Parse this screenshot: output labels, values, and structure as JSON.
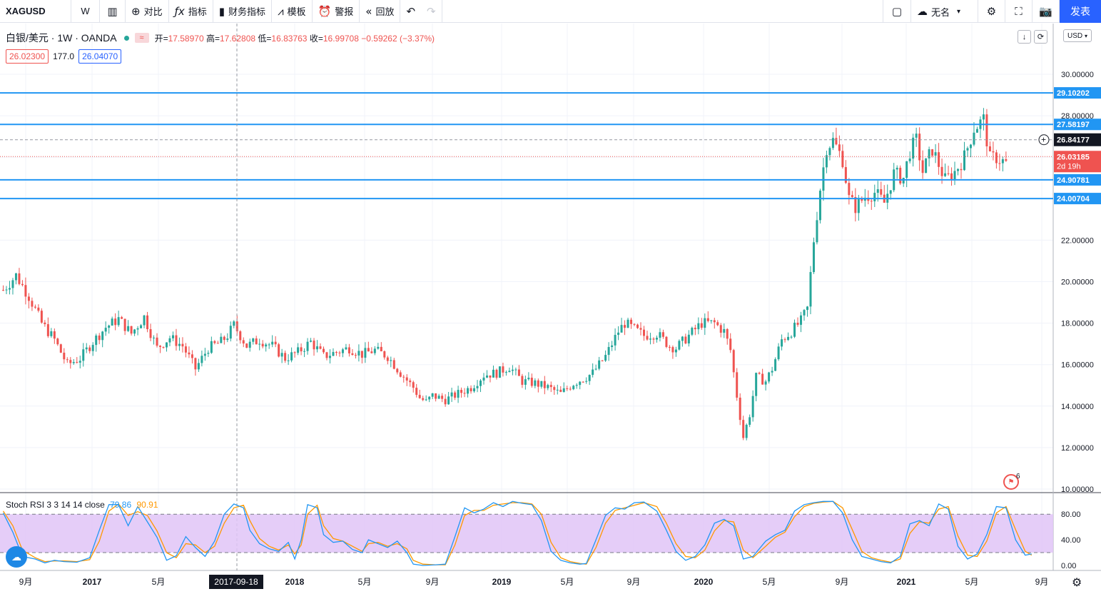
{
  "toolbar": {
    "symbol": "XAGUSD",
    "interval": "W",
    "compare": "对比",
    "indicators": "指标",
    "financials": "财务指标",
    "templates": "模板",
    "alert": "警报",
    "replay": "回放",
    "layout_name": "无名",
    "publish": "发表",
    "icons": {
      "candles": "candles-icon",
      "compare": "plus-circle-icon",
      "indicators": "fx-icon",
      "financials": "bar-chart-icon",
      "templates": "template-icon",
      "alert": "alarm-clock-icon",
      "replay": "rewind-icon",
      "undo": "undo-icon",
      "redo": "redo-icon",
      "layout": "square-icon",
      "cloud": "cloud-icon",
      "settings": "gear-icon",
      "fullscreen": "fullscreen-icon",
      "snapshot": "camera-icon"
    }
  },
  "legend": {
    "title": "白银/美元 · 1W · OANDA",
    "open_label": "开=",
    "open": "17.58970",
    "high_label": "高=",
    "high": "17.62808",
    "low_label": "低=",
    "low": "16.83763",
    "close_label": "收=",
    "close": "16.99708",
    "change": "−0.59262 (−3.37%)"
  },
  "spread": {
    "bid": "26.02300",
    "spread": "177.0",
    "ask": "26.04070"
  },
  "currency": "USD",
  "colors": {
    "up": "#26a69a",
    "down": "#ef5350",
    "hline": "#2196f3",
    "k": "#2196f3",
    "d": "#ff9800"
  },
  "chart_data": {
    "type": "candlestick",
    "symbol": "XAGUSD",
    "interval": "1W",
    "ylim": [
      10,
      31
    ],
    "y_ticks": [
      "30.00000",
      "28.00000",
      "22.00000",
      "20.00000",
      "18.00000",
      "16.00000",
      "14.00000",
      "12.00000",
      "10.00000"
    ],
    "x_ticks": [
      "9月",
      "2017",
      "5月",
      "2018",
      "5月",
      "9月",
      "2019",
      "5月",
      "9月",
      "2020",
      "5月",
      "9月",
      "2021",
      "5月",
      "9月"
    ],
    "hlines": [
      {
        "value": 29.10202,
        "label": "29.10202"
      },
      {
        "value": 27.58197,
        "label": "27.58197"
      },
      {
        "value": 24.90781,
        "label": "24.90781"
      },
      {
        "value": 24.00704,
        "label": "24.00704"
      }
    ],
    "crosshair_price": "26.84177",
    "last_price": {
      "value": 26.03185,
      "label": "26.03185",
      "countdown": "2d 19h"
    },
    "crosshair_date": "2017-09-18",
    "price_path": [
      [
        0,
        19.6
      ],
      [
        4,
        20.3
      ],
      [
        8,
        19.3
      ],
      [
        12,
        18.0
      ],
      [
        16,
        17.2
      ],
      [
        20,
        16.0
      ],
      [
        24,
        16.3
      ],
      [
        28,
        17.1
      ],
      [
        32,
        17.8
      ],
      [
        36,
        18.2
      ],
      [
        40,
        17.5
      ],
      [
        44,
        18.3
      ],
      [
        48,
        16.8
      ],
      [
        52,
        17.3
      ],
      [
        56,
        16.9
      ],
      [
        60,
        15.8
      ],
      [
        64,
        16.8
      ],
      [
        68,
        17.1
      ],
      [
        70,
        17.4
      ],
      [
        72,
        17.9
      ],
      [
        76,
        16.9
      ],
      [
        80,
        17.2
      ],
      [
        84,
        16.9
      ],
      [
        88,
        16.3
      ],
      [
        92,
        16.6
      ],
      [
        96,
        17.1
      ],
      [
        100,
        16.4
      ],
      [
        104,
        16.6
      ],
      [
        108,
        16.8
      ],
      [
        112,
        16.5
      ],
      [
        116,
        16.7
      ],
      [
        120,
        16.4
      ],
      [
        124,
        15.6
      ],
      [
        128,
        14.9
      ],
      [
        130,
        14.4
      ],
      [
        132,
        14.2
      ],
      [
        134,
        14.5
      ],
      [
        138,
        14.3
      ],
      [
        142,
        14.6
      ],
      [
        146,
        14.9
      ],
      [
        150,
        15.5
      ],
      [
        154,
        15.6
      ],
      [
        158,
        15.9
      ],
      [
        162,
        15.2
      ],
      [
        166,
        15.1
      ],
      [
        170,
        14.9
      ],
      [
        174,
        14.6
      ],
      [
        178,
        15.1
      ],
      [
        182,
        15.4
      ],
      [
        184,
        15.6
      ],
      [
        188,
        16.4
      ],
      [
        192,
        17.6
      ],
      [
        194,
        18.0
      ],
      [
        196,
        17.8
      ],
      [
        200,
        17.4
      ],
      [
        204,
        17.5
      ],
      [
        208,
        16.9
      ],
      [
        210,
        16.8
      ],
      [
        214,
        17.4
      ],
      [
        218,
        18.0
      ],
      [
        222,
        18.0
      ],
      [
        225,
        17.6
      ],
      [
        227,
        16.7
      ],
      [
        229,
        14.5
      ],
      [
        231,
        12.5
      ],
      [
        233,
        13.6
      ],
      [
        235,
        15.4
      ],
      [
        238,
        15.2
      ],
      [
        240,
        15.8
      ],
      [
        243,
        17.2
      ],
      [
        246,
        17.6
      ],
      [
        249,
        18.1
      ],
      [
        251,
        18.7
      ],
      [
        253,
        22.0
      ],
      [
        255,
        24.5
      ],
      [
        257,
        26.5
      ],
      [
        259,
        26.8
      ],
      [
        262,
        25.9
      ],
      [
        264,
        24.0
      ],
      [
        266,
        23.6
      ],
      [
        269,
        24.1
      ],
      [
        272,
        24.3
      ],
      [
        275,
        23.8
      ],
      [
        278,
        25.2
      ],
      [
        281,
        25.0
      ],
      [
        283,
        26.3
      ],
      [
        285,
        26.8
      ],
      [
        287,
        25.3
      ],
      [
        290,
        26.4
      ],
      [
        294,
        24.9
      ],
      [
        297,
        25.3
      ],
      [
        300,
        26.0
      ],
      [
        303,
        27.4
      ],
      [
        306,
        27.8
      ],
      [
        308,
        25.9
      ],
      [
        310,
        26.0
      ],
      [
        313,
        25.7
      ]
    ]
  },
  "stoch": {
    "label": "Stoch RSI 3 3 14 14 close",
    "k": "79.86",
    "d": "90.91",
    "y_ticks": [
      "80.00",
      "40.00",
      "0.00"
    ],
    "upper_band": 80,
    "lower_band": 20,
    "k_path": [
      [
        0,
        82
      ],
      [
        3,
        52
      ],
      [
        6,
        14
      ],
      [
        10,
        10
      ],
      [
        13,
        4
      ],
      [
        16,
        8
      ],
      [
        19,
        6
      ],
      [
        23,
        5
      ],
      [
        27,
        12
      ],
      [
        30,
        55
      ],
      [
        33,
        95
      ],
      [
        36,
        95
      ],
      [
        39,
        62
      ],
      [
        42,
        92
      ],
      [
        45,
        68
      ],
      [
        48,
        44
      ],
      [
        51,
        8
      ],
      [
        54,
        15
      ],
      [
        57,
        45
      ],
      [
        60,
        28
      ],
      [
        63,
        14
      ],
      [
        66,
        38
      ],
      [
        69,
        80
      ],
      [
        72,
        96
      ],
      [
        75,
        90
      ],
      [
        77,
        55
      ],
      [
        80,
        34
      ],
      [
        83,
        26
      ],
      [
        86,
        22
      ],
      [
        89,
        36
      ],
      [
        91,
        10
      ],
      [
        93,
        40
      ],
      [
        95,
        95
      ],
      [
        98,
        90
      ],
      [
        100,
        48
      ],
      [
        103,
        36
      ],
      [
        106,
        38
      ],
      [
        109,
        25
      ],
      [
        112,
        20
      ],
      [
        114,
        40
      ],
      [
        117,
        34
      ],
      [
        120,
        28
      ],
      [
        123,
        38
      ],
      [
        126,
        20
      ],
      [
        128,
        2
      ],
      [
        131,
        0
      ],
      [
        135,
        1
      ],
      [
        138,
        2
      ],
      [
        141,
        45
      ],
      [
        144,
        90
      ],
      [
        147,
        82
      ],
      [
        150,
        88
      ],
      [
        153,
        98
      ],
      [
        156,
        92
      ],
      [
        159,
        100
      ],
      [
        162,
        97
      ],
      [
        165,
        95
      ],
      [
        168,
        70
      ],
      [
        171,
        22
      ],
      [
        174,
        8
      ],
      [
        177,
        4
      ],
      [
        180,
        2
      ],
      [
        182,
        3
      ],
      [
        185,
        40
      ],
      [
        188,
        78
      ],
      [
        191,
        90
      ],
      [
        194,
        88
      ],
      [
        197,
        98
      ],
      [
        200,
        99
      ],
      [
        204,
        85
      ],
      [
        207,
        55
      ],
      [
        210,
        22
      ],
      [
        213,
        8
      ],
      [
        216,
        14
      ],
      [
        219,
        32
      ],
      [
        222,
        66
      ],
      [
        225,
        72
      ],
      [
        228,
        62
      ],
      [
        231,
        10
      ],
      [
        234,
        14
      ],
      [
        238,
        38
      ],
      [
        241,
        48
      ],
      [
        244,
        55
      ],
      [
        247,
        85
      ],
      [
        250,
        95
      ],
      [
        253,
        98
      ],
      [
        256,
        100
      ],
      [
        259,
        100
      ],
      [
        262,
        82
      ],
      [
        265,
        40
      ],
      [
        268,
        14
      ],
      [
        271,
        10
      ],
      [
        274,
        6
      ],
      [
        277,
        4
      ],
      [
        280,
        14
      ],
      [
        283,
        65
      ],
      [
        286,
        70
      ],
      [
        289,
        62
      ],
      [
        292,
        96
      ],
      [
        295,
        88
      ],
      [
        298,
        30
      ],
      [
        301,
        10
      ],
      [
        304,
        18
      ],
      [
        307,
        48
      ],
      [
        310,
        92
      ],
      [
        313,
        90
      ],
      [
        316,
        40
      ],
      [
        319,
        16
      ],
      [
        321,
        18
      ]
    ],
    "d_path": [
      [
        0,
        85
      ],
      [
        3,
        62
      ],
      [
        6,
        24
      ],
      [
        10,
        12
      ],
      [
        13,
        6
      ],
      [
        16,
        7
      ],
      [
        19,
        7
      ],
      [
        23,
        6
      ],
      [
        27,
        9
      ],
      [
        30,
        38
      ],
      [
        33,
        85
      ],
      [
        36,
        96
      ],
      [
        39,
        78
      ],
      [
        42,
        84
      ],
      [
        45,
        78
      ],
      [
        48,
        54
      ],
      [
        51,
        20
      ],
      [
        54,
        12
      ],
      [
        57,
        34
      ],
      [
        60,
        32
      ],
      [
        63,
        20
      ],
      [
        66,
        30
      ],
      [
        69,
        66
      ],
      [
        72,
        90
      ],
      [
        75,
        94
      ],
      [
        77,
        70
      ],
      [
        80,
        42
      ],
      [
        83,
        30
      ],
      [
        86,
        24
      ],
      [
        89,
        32
      ],
      [
        91,
        18
      ],
      [
        93,
        32
      ],
      [
        95,
        80
      ],
      [
        98,
        94
      ],
      [
        100,
        62
      ],
      [
        103,
        42
      ],
      [
        106,
        38
      ],
      [
        109,
        30
      ],
      [
        112,
        22
      ],
      [
        114,
        34
      ],
      [
        117,
        36
      ],
      [
        120,
        30
      ],
      [
        123,
        34
      ],
      [
        126,
        26
      ],
      [
        128,
        8
      ],
      [
        131,
        2
      ],
      [
        135,
        1
      ],
      [
        138,
        1
      ],
      [
        141,
        32
      ],
      [
        144,
        78
      ],
      [
        147,
        86
      ],
      [
        150,
        86
      ],
      [
        153,
        94
      ],
      [
        156,
        96
      ],
      [
        159,
        98
      ],
      [
        162,
        98
      ],
      [
        165,
        96
      ],
      [
        168,
        80
      ],
      [
        171,
        36
      ],
      [
        174,
        12
      ],
      [
        177,
        6
      ],
      [
        180,
        3
      ],
      [
        182,
        2
      ],
      [
        185,
        28
      ],
      [
        188,
        66
      ],
      [
        191,
        86
      ],
      [
        194,
        90
      ],
      [
        197,
        94
      ],
      [
        200,
        98
      ],
      [
        204,
        92
      ],
      [
        207,
        66
      ],
      [
        210,
        34
      ],
      [
        213,
        14
      ],
      [
        216,
        12
      ],
      [
        219,
        24
      ],
      [
        222,
        54
      ],
      [
        225,
        70
      ],
      [
        228,
        68
      ],
      [
        231,
        24
      ],
      [
        234,
        12
      ],
      [
        238,
        30
      ],
      [
        241,
        44
      ],
      [
        244,
        52
      ],
      [
        247,
        76
      ],
      [
        250,
        92
      ],
      [
        253,
        97
      ],
      [
        256,
        99
      ],
      [
        259,
        100
      ],
      [
        262,
        90
      ],
      [
        265,
        56
      ],
      [
        268,
        22
      ],
      [
        271,
        12
      ],
      [
        274,
        8
      ],
      [
        277,
        5
      ],
      [
        280,
        10
      ],
      [
        283,
        50
      ],
      [
        286,
        68
      ],
      [
        289,
        66
      ],
      [
        292,
        88
      ],
      [
        295,
        92
      ],
      [
        298,
        46
      ],
      [
        301,
        16
      ],
      [
        304,
        14
      ],
      [
        307,
        38
      ],
      [
        310,
        82
      ],
      [
        313,
        92
      ],
      [
        316,
        56
      ],
      [
        319,
        22
      ],
      [
        321,
        16
      ]
    ]
  }
}
